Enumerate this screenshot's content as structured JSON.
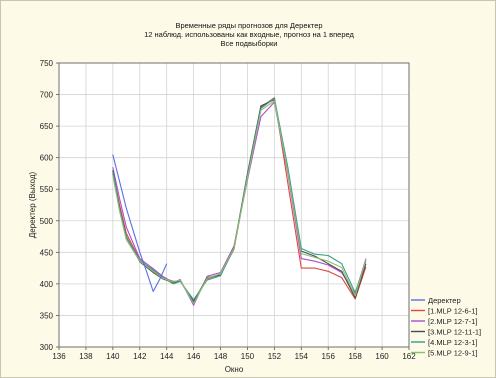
{
  "chart_data": {
    "type": "line",
    "title": "Временные ряды прогнозов для Деректер",
    "subtitle_1": "12 наблюд. использованы как входные, прогноз на 1 вперед",
    "subtitle_2": "Все подвыборки",
    "xlabel": "Окно",
    "ylabel": "Деректер (Выход)",
    "xlim": [
      136,
      162
    ],
    "ylim": [
      300,
      750
    ],
    "x_ticks": [
      136,
      138,
      140,
      142,
      144,
      146,
      148,
      150,
      152,
      154,
      156,
      158,
      160,
      162
    ],
    "y_ticks": [
      300,
      350,
      400,
      450,
      500,
      550,
      600,
      650,
      700,
      750
    ],
    "grid": true,
    "legend_position": "bottom-right",
    "series": [
      {
        "name": "Деректер",
        "color": "#5b6ee0",
        "points": [
          [
            140,
            605
          ],
          [
            141,
            520
          ],
          [
            142,
            450
          ],
          [
            142.5,
            420
          ],
          [
            143,
            388
          ],
          [
            143.5,
            408
          ],
          [
            144,
            432
          ]
        ]
      },
      {
        "name": "[1.MLP 12-6-1]",
        "color": "#e0453f",
        "points": [
          [
            140,
            575
          ],
          [
            140.5,
            525
          ],
          [
            141,
            480
          ],
          [
            142,
            438
          ],
          [
            143,
            420
          ],
          [
            143.7,
            410
          ],
          [
            144.5,
            404
          ],
          [
            145,
            405
          ],
          [
            146,
            370
          ],
          [
            147,
            408
          ],
          [
            148,
            415
          ],
          [
            149,
            455
          ],
          [
            150,
            570
          ],
          [
            151,
            680
          ],
          [
            152,
            695
          ],
          [
            153,
            560
          ],
          [
            154,
            425
          ],
          [
            155,
            425
          ],
          [
            156,
            420
          ],
          [
            157,
            410
          ],
          [
            158,
            376
          ],
          [
            158.8,
            427
          ]
        ]
      },
      {
        "name": "[2.MLP 12-7-1]",
        "color": "#b04bd0",
        "points": [
          [
            140,
            585
          ],
          [
            140.5,
            535
          ],
          [
            141,
            490
          ],
          [
            142,
            440
          ],
          [
            143,
            424
          ],
          [
            143.7,
            412
          ],
          [
            144.5,
            402
          ],
          [
            145,
            407
          ],
          [
            146,
            366
          ],
          [
            147,
            412
          ],
          [
            148,
            418
          ],
          [
            149,
            460
          ],
          [
            150,
            565
          ],
          [
            151,
            665
          ],
          [
            152,
            688
          ],
          [
            153,
            575
          ],
          [
            154,
            440
          ],
          [
            155,
            436
          ],
          [
            156,
            430
          ],
          [
            157,
            418
          ],
          [
            158,
            384
          ],
          [
            158.8,
            440
          ]
        ]
      },
      {
        "name": "[3.MLP 12-11-1]",
        "color": "#4a4a4a",
        "points": [
          [
            140,
            580
          ],
          [
            140.5,
            520
          ],
          [
            141,
            475
          ],
          [
            142,
            435
          ],
          [
            143,
            418
          ],
          [
            143.7,
            408
          ],
          [
            144.5,
            402
          ],
          [
            145,
            405
          ],
          [
            146,
            372
          ],
          [
            147,
            410
          ],
          [
            148,
            414
          ],
          [
            149,
            458
          ],
          [
            150,
            575
          ],
          [
            151,
            682
          ],
          [
            152,
            692
          ],
          [
            153,
            580
          ],
          [
            154,
            452
          ],
          [
            155,
            444
          ],
          [
            156,
            432
          ],
          [
            157,
            420
          ],
          [
            158,
            378
          ],
          [
            158.8,
            432
          ]
        ]
      },
      {
        "name": "[4.MLP 12-3-1]",
        "color": "#3a9a8a",
        "points": [
          [
            140,
            578
          ],
          [
            140.5,
            518
          ],
          [
            141,
            474
          ],
          [
            142,
            437
          ],
          [
            143,
            422
          ],
          [
            143.7,
            410
          ],
          [
            144.5,
            400
          ],
          [
            145,
            404
          ],
          [
            146,
            375
          ],
          [
            147,
            406
          ],
          [
            148,
            413
          ],
          [
            149,
            456
          ],
          [
            150,
            572
          ],
          [
            151,
            678
          ],
          [
            152,
            694
          ],
          [
            153,
            585
          ],
          [
            154,
            456
          ],
          [
            155,
            447
          ],
          [
            156,
            445
          ],
          [
            157,
            432
          ],
          [
            158,
            386
          ],
          [
            158.8,
            436
          ]
        ]
      },
      {
        "name": "[5.MLP 12-9-1]",
        "color": "#8bbf70",
        "points": [
          [
            140,
            572
          ],
          [
            140.5,
            515
          ],
          [
            141,
            470
          ],
          [
            142,
            436
          ],
          [
            143,
            420
          ],
          [
            143.7,
            409
          ],
          [
            144.5,
            403
          ],
          [
            145,
            406
          ],
          [
            146,
            369
          ],
          [
            147,
            409
          ],
          [
            148,
            416
          ],
          [
            149,
            457
          ],
          [
            150,
            568
          ],
          [
            151,
            675
          ],
          [
            152,
            690
          ],
          [
            153,
            578
          ],
          [
            154,
            448
          ],
          [
            155,
            442
          ],
          [
            156,
            436
          ],
          [
            157,
            426
          ],
          [
            158,
            381
          ],
          [
            158.8,
            438
          ]
        ]
      }
    ]
  }
}
